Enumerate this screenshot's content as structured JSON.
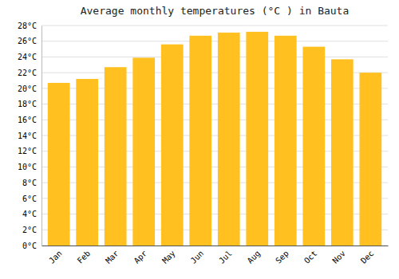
{
  "chart_data": {
    "type": "bar",
    "title": "Average monthly temperatures (°C ) in Bauta",
    "categories": [
      "Jan",
      "Feb",
      "Mar",
      "Apr",
      "May",
      "Jun",
      "Jul",
      "Aug",
      "Sep",
      "Oct",
      "Nov",
      "Dec"
    ],
    "values": [
      20.7,
      21.2,
      22.7,
      23.9,
      25.6,
      26.7,
      27.1,
      27.2,
      26.7,
      25.3,
      23.7,
      22.0
    ],
    "color": "#FFC020",
    "ylim": [
      0,
      28
    ],
    "yticks": [
      {
        "value": 0,
        "label": "0°C"
      },
      {
        "value": 2,
        "label": "2°C"
      },
      {
        "value": 4,
        "label": "4°C"
      },
      {
        "value": 6,
        "label": "6°C"
      },
      {
        "value": 8,
        "label": "8°C"
      },
      {
        "value": 10,
        "label": "10°C"
      },
      {
        "value": 12,
        "label": "12°C"
      },
      {
        "value": 14,
        "label": "14°C"
      },
      {
        "value": 16,
        "label": "16°C"
      },
      {
        "value": 18,
        "label": "18°C"
      },
      {
        "value": 20,
        "label": "20°C"
      },
      {
        "value": 22,
        "label": "22°C"
      },
      {
        "value": 24,
        "label": "24°C"
      },
      {
        "value": 26,
        "label": "26°C"
      },
      {
        "value": 28,
        "label": "28°C"
      }
    ],
    "grid": true
  }
}
